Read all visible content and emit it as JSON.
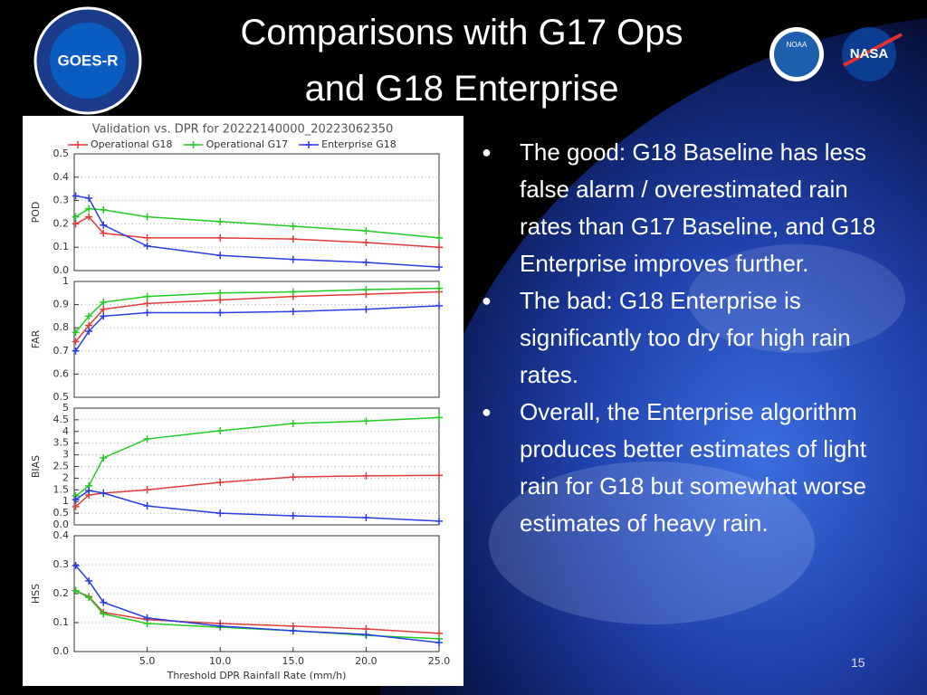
{
  "slide": {
    "title_lines": [
      "Comparisons with G17 Ops",
      "and G18 Enterprise"
    ],
    "bullets": [
      "The good: G18 Baseline has less false alarm / overestimated rain rates than G17 Baseline, and G18 Enterprise improves further.",
      "The bad: G18 Enterprise is significantly too dry for high rain rates.",
      "Overall, the Enterprise algorithm produces better estimates of light rain for G18 but somewhat worse estimates of heavy rain."
    ],
    "page_number": "15",
    "logos": {
      "goes": "GOES-R",
      "noaa": "NOAA",
      "nasa": "NASA"
    }
  },
  "chart_data": [
    {
      "type": "line",
      "title": "Validation vs. DPR for 20222140000_20223062350",
      "ylabel": "POD",
      "x": [
        0.1,
        1,
        2,
        5,
        10,
        15,
        20,
        25
      ],
      "xlim": [
        0,
        25
      ],
      "ylim": [
        0,
        0.5
      ],
      "yticks": [
        {
          "value": 0,
          "label": "0.0"
        },
        0.1,
        0.2,
        0.3,
        0.4,
        0.5
      ],
      "grid": true,
      "series": [
        {
          "name": "Operational G18",
          "color": "#e03c3c",
          "values": [
            0.2,
            0.23,
            0.16,
            0.14,
            0.14,
            0.135,
            0.12,
            0.1
          ]
        },
        {
          "name": "Operational G17",
          "color": "#22cc22",
          "values": [
            0.23,
            0.265,
            0.26,
            0.23,
            0.21,
            0.19,
            0.17,
            0.14
          ]
        },
        {
          "name": "Enterprise G18",
          "color": "#2a3ee0",
          "values": [
            0.32,
            0.31,
            0.195,
            0.105,
            0.065,
            0.048,
            0.035,
            0.015
          ]
        }
      ]
    },
    {
      "type": "line",
      "ylabel": "FAR",
      "x": [
        0.1,
        1,
        2,
        5,
        10,
        15,
        20,
        25
      ],
      "xlim": [
        0,
        25
      ],
      "ylim": [
        0.5,
        1
      ],
      "yticks": [
        0.5,
        0.6,
        0.7,
        0.8,
        0.9,
        1
      ],
      "grid": true,
      "series": [
        {
          "color": "#e03c3c",
          "values": [
            0.74,
            0.81,
            0.88,
            0.905,
            0.92,
            0.935,
            0.945,
            0.955
          ]
        },
        {
          "color": "#22cc22",
          "values": [
            0.78,
            0.85,
            0.91,
            0.935,
            0.95,
            0.955,
            0.965,
            0.97
          ]
        },
        {
          "color": "#2a3ee0",
          "values": [
            0.7,
            0.785,
            0.85,
            0.865,
            0.865,
            0.87,
            0.88,
            0.895
          ]
        }
      ]
    },
    {
      "type": "line",
      "ylabel": "BIAS",
      "x": [
        0.1,
        1,
        2,
        5,
        10,
        15,
        20,
        25
      ],
      "xlim": [
        0,
        25
      ],
      "ylim": [
        0,
        5
      ],
      "yticks": [
        {
          "value": 0,
          "label": "0.0"
        },
        0.5,
        1,
        1.5,
        2,
        2.5,
        3,
        3.5,
        4,
        4.5,
        5
      ],
      "grid": true,
      "series": [
        {
          "color": "#e03c3c",
          "values": [
            0.78,
            1.28,
            1.36,
            1.5,
            1.82,
            2.05,
            2.1,
            2.12
          ]
        },
        {
          "color": "#22cc22",
          "values": [
            1.24,
            1.67,
            2.87,
            3.68,
            4.03,
            4.34,
            4.45,
            4.6
          ]
        },
        {
          "color": "#2a3ee0",
          "values": [
            1.08,
            1.47,
            1.36,
            0.81,
            0.5,
            0.39,
            0.31,
            0.16
          ]
        }
      ]
    },
    {
      "type": "line",
      "ylabel": "HSS",
      "xlabel": "Threshold DPR Rainfall Rate (mm/h)",
      "x": [
        0.1,
        1,
        2,
        5,
        10,
        15,
        20,
        25
      ],
      "xlim": [
        0,
        25
      ],
      "xticks": [
        {
          "value": 5,
          "label": "5.0"
        },
        {
          "value": 10,
          "label": "10.0"
        },
        {
          "value": 15,
          "label": "15.0"
        },
        {
          "value": 20,
          "label": "20.0"
        },
        {
          "value": 25,
          "label": "25.0"
        }
      ],
      "ylim": [
        0,
        0.4
      ],
      "yticks": [
        {
          "value": 0,
          "label": "0.0"
        },
        0.1,
        0.2,
        0.3,
        0.4
      ],
      "grid": true,
      "series": [
        {
          "color": "#e03c3c",
          "values": [
            0.21,
            0.19,
            0.135,
            0.11,
            0.097,
            0.088,
            0.078,
            0.063
          ]
        },
        {
          "color": "#22cc22",
          "values": [
            0.21,
            0.187,
            0.13,
            0.097,
            0.084,
            0.072,
            0.056,
            0.044
          ]
        },
        {
          "color": "#2a3ee0",
          "values": [
            0.297,
            0.244,
            0.17,
            0.116,
            0.088,
            0.072,
            0.059,
            0.031
          ]
        }
      ]
    }
  ]
}
